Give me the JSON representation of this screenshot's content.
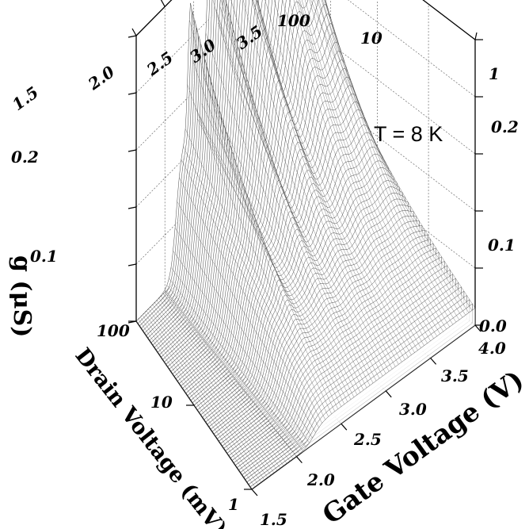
{
  "chart_data": {
    "type": "surface3d",
    "annotation": "T = 8 K",
    "x_axis": {
      "label": "Gate Voltage (V)",
      "range": [
        1.5,
        4.0
      ],
      "ticks": [
        "1.5",
        "2.0",
        "2.5",
        "3.0",
        "3.5",
        "4.0"
      ],
      "top_ticks": [
        "1.5",
        "2.0",
        "2.5",
        "3.0",
        "3.5"
      ]
    },
    "y_axis": {
      "label": "Drain Voltage (mV)",
      "scale": "log",
      "range": [
        1,
        100
      ],
      "ticks": [
        "1",
        "10",
        "100"
      ],
      "top_ticks": [
        "100",
        "10",
        "1"
      ]
    },
    "z_axis": {
      "label": "g (μS)",
      "range": [
        0.0,
        0.25
      ],
      "left_ticks": [
        "0.1",
        "0.2"
      ],
      "right_ticks": [
        "0.0",
        "0.1",
        "0.2"
      ]
    },
    "grid": true,
    "peaks_gate_voltage": [
      2.45,
      2.8,
      3.1,
      3.45,
      3.8
    ],
    "onset_gate_voltage": 2.2,
    "z_at_low_drain": 0.015,
    "z_at_high_drain": 0.08,
    "peak_height_max": 0.25
  }
}
